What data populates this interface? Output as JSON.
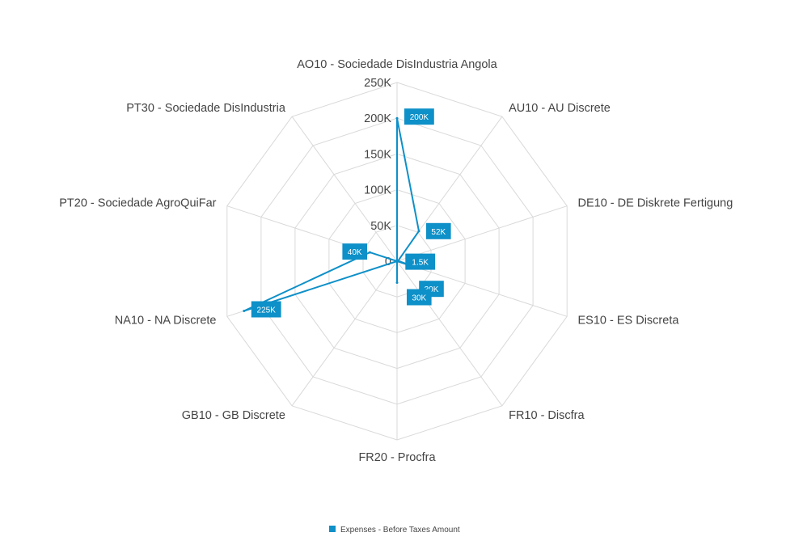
{
  "chart_data": {
    "type": "radar",
    "categories": [
      "AO10 - Sociedade DisIndustria Angola",
      "AU10 - AU Discrete",
      "DE10 - DE Diskrete Fertigung",
      "ES10 - ES Discreta",
      "FR10 - Discfra",
      "FR20 - Procfra",
      "GB10 - GB Discrete",
      "NA10 - NA Discrete",
      "PT20 - Sociedade AgroQuiFar",
      "PT30 - Sociedade DisIndustria"
    ],
    "series": [
      {
        "name": "Expenses - Before Taxes Amount",
        "color": "#0e90c8",
        "values": [
          200000,
          52000,
          1500,
          30000,
          0,
          30000,
          0,
          225000,
          40000,
          0
        ]
      }
    ],
    "data_labels": [
      "200K",
      "52K",
      "1.5K",
      "30K",
      "",
      "30K",
      "",
      "225K",
      "40K",
      ""
    ],
    "radial_ticks": [
      "0",
      "50K",
      "100K",
      "150K",
      "200K",
      "250K"
    ],
    "radial_tick_values": [
      0,
      50000,
      100000,
      150000,
      200000,
      250000
    ],
    "rmax": 250000,
    "grid": true,
    "grid_color": "#d9d9d9",
    "legend_position": "bottom"
  }
}
